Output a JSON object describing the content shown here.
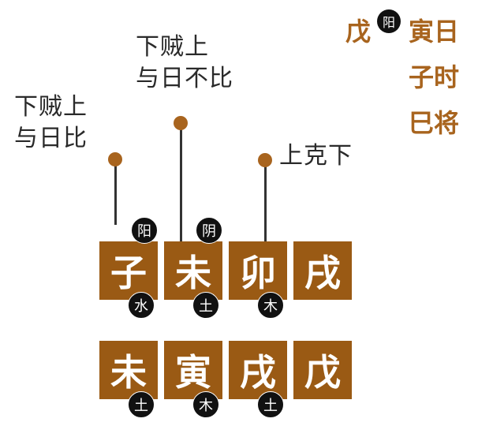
{
  "top_right": {
    "stem": "戊",
    "stem_badge": "阳",
    "day": "寅日",
    "hour": "子时",
    "general": "巳将"
  },
  "annotations": [
    {
      "line1": "下贼上",
      "line2": "与日比"
    },
    {
      "line1": "下贼上",
      "line2": "与日不比"
    },
    {
      "line1": "上克下"
    }
  ],
  "top_row": [
    {
      "char": "子",
      "yinyang": "阳",
      "element": "水"
    },
    {
      "char": "未",
      "yinyang": "阴",
      "element": "土"
    },
    {
      "char": "卯",
      "element": "木"
    },
    {
      "char": "戌"
    }
  ],
  "bottom_row": [
    {
      "char": "未",
      "element": "土"
    },
    {
      "char": "寅",
      "element": "木"
    },
    {
      "char": "戌",
      "element": "土"
    },
    {
      "char": "戊"
    }
  ],
  "colors": {
    "accent": "#a8641e",
    "box": "#9a5a14",
    "badge": "#111111",
    "text": "#2a2a2a"
  }
}
